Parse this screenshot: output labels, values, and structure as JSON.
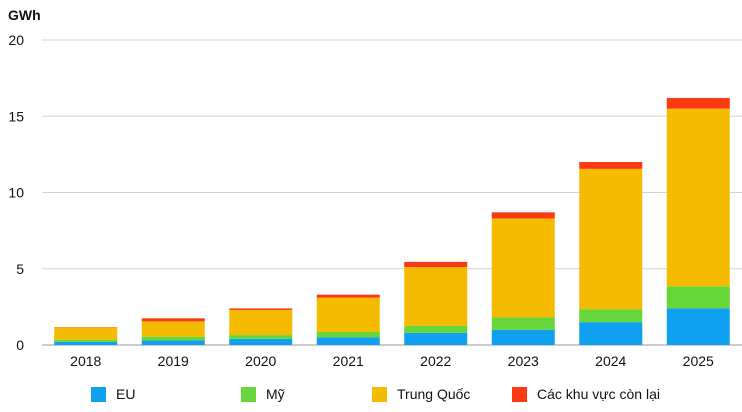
{
  "chart_data": {
    "type": "bar",
    "stacked": true,
    "ylabel": "GWh",
    "ylim": [
      0,
      20
    ],
    "yticks": [
      0,
      5,
      10,
      15,
      20
    ],
    "grid": true,
    "legend_position": "bottom",
    "categories": [
      "2018",
      "2019",
      "2020",
      "2021",
      "2022",
      "2023",
      "2024",
      "2025"
    ],
    "series": [
      {
        "name": "EU",
        "color": "#0fa0f0",
        "values": [
          0.2,
          0.3,
          0.4,
          0.5,
          0.8,
          1.0,
          1.5,
          2.4
        ]
      },
      {
        "name": "Mỹ",
        "color": "#66d63a",
        "values": [
          0.15,
          0.25,
          0.25,
          0.35,
          0.45,
          0.8,
          0.85,
          1.45
        ]
      },
      {
        "name": "Trung Quốc",
        "color": "#f5bb00",
        "values": [
          0.8,
          1.0,
          1.65,
          2.25,
          3.85,
          6.5,
          9.2,
          11.65
        ]
      },
      {
        "name": "Các khu vực còn lại",
        "color": "#fa3a12",
        "values": [
          0.02,
          0.2,
          0.1,
          0.2,
          0.35,
          0.4,
          0.45,
          0.7
        ]
      }
    ]
  }
}
